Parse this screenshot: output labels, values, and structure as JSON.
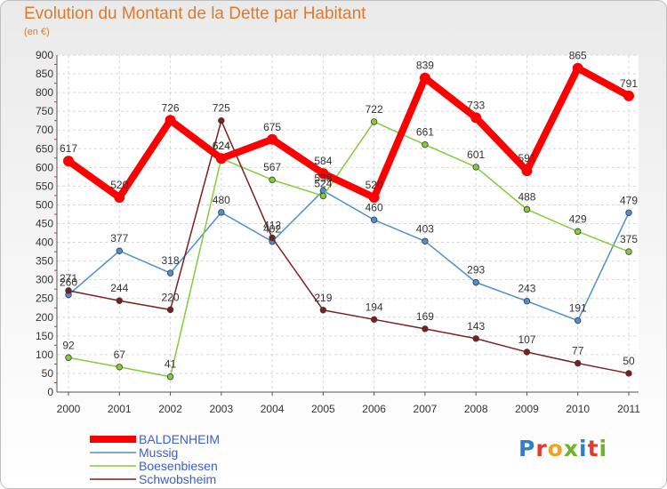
{
  "title": "Evolution du Montant de la Dette par Habitant",
  "unit_label": "(en €)",
  "logo_text": "Proxiti",
  "logo_colors": [
    "#2f7fd0",
    "#e23a2c",
    "#f2a21b",
    "#6bb52b",
    "#2f7fd0",
    "#e23a2c",
    "#6bb52b"
  ],
  "chart_data": {
    "type": "line",
    "title": "Evolution du Montant de la Dette par Habitant",
    "ylabel": "(en €)",
    "xlabel": "",
    "ylim": [
      0,
      900
    ],
    "yticks": [
      0,
      50,
      100,
      150,
      200,
      250,
      300,
      350,
      400,
      450,
      500,
      550,
      600,
      650,
      700,
      750,
      800,
      850,
      900
    ],
    "x": [
      "2000",
      "2001",
      "2002",
      "2003",
      "2004",
      "2005",
      "2006",
      "2007",
      "2008",
      "2009",
      "2010",
      "2011"
    ],
    "grid": true,
    "legend_position": "bottom-left",
    "series": [
      {
        "name": "BALDENHEIM",
        "color": "#ff0000",
        "values": [
          617,
          520,
          726,
          624,
          675,
          584,
          520,
          839,
          733,
          591,
          865,
          791
        ]
      },
      {
        "name": "Mussig",
        "color": "#4f8fd0",
        "values": [
          260,
          377,
          318,
          480,
          402,
          538,
          460,
          403,
          293,
          243,
          191,
          479
        ]
      },
      {
        "name": "Boesenbiesen",
        "color": "#85cc3a",
        "values": [
          92,
          67,
          41,
          624,
          567,
          524,
          722,
          661,
          601,
          488,
          429,
          375
        ]
      },
      {
        "name": "Schwobsheim",
        "color": "#7a1f1f",
        "values": [
          271,
          244,
          220,
          725,
          412,
          219,
          194,
          169,
          143,
          107,
          77,
          50
        ]
      }
    ]
  }
}
